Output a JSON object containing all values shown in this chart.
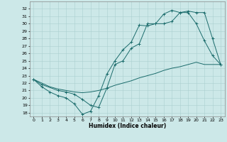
{
  "xlabel": "Humidex (Indice chaleur)",
  "bg_color": "#cce8e8",
  "grid_color": "#aacfcf",
  "line_color": "#1a6b6b",
  "xlim": [
    -0.5,
    23.5
  ],
  "ylim": [
    17.5,
    33.0
  ],
  "xticks": [
    0,
    1,
    2,
    3,
    4,
    5,
    6,
    7,
    8,
    9,
    10,
    11,
    12,
    13,
    14,
    15,
    16,
    17,
    18,
    19,
    20,
    21,
    22,
    23
  ],
  "yticks": [
    18,
    19,
    20,
    21,
    22,
    23,
    24,
    25,
    26,
    27,
    28,
    29,
    30,
    31,
    32
  ],
  "line1_x": [
    0,
    1,
    2,
    3,
    4,
    5,
    6,
    7,
    8,
    9,
    10,
    11,
    12,
    13,
    14,
    15,
    16,
    17,
    18,
    19,
    20,
    21,
    22,
    23
  ],
  "line1_y": [
    22.5,
    21.5,
    20.8,
    20.3,
    20.0,
    19.2,
    17.8,
    18.2,
    20.3,
    23.2,
    25.0,
    26.5,
    27.5,
    29.8,
    29.7,
    30.0,
    31.3,
    31.8,
    31.5,
    31.5,
    30.0,
    27.7,
    25.7,
    24.5
  ],
  "line2_x": [
    0,
    1,
    3,
    4,
    5,
    6,
    7,
    8,
    9,
    10,
    11,
    12,
    13,
    14,
    15,
    16,
    17,
    18,
    19,
    20,
    21,
    22,
    23
  ],
  "line2_y": [
    22.5,
    21.8,
    21.0,
    20.8,
    20.5,
    19.8,
    19.0,
    18.7,
    21.3,
    24.5,
    25.0,
    26.7,
    27.3,
    30.0,
    30.0,
    30.0,
    30.3,
    31.5,
    31.7,
    31.5,
    31.5,
    28.0,
    24.5
  ],
  "line3_x": [
    0,
    1,
    2,
    3,
    4,
    5,
    6,
    7,
    8,
    9,
    10,
    11,
    12,
    13,
    14,
    15,
    16,
    17,
    18,
    19,
    20,
    21,
    22,
    23
  ],
  "line3_y": [
    22.5,
    22.0,
    21.5,
    21.2,
    21.0,
    20.8,
    20.7,
    20.8,
    21.0,
    21.3,
    21.7,
    22.0,
    22.3,
    22.7,
    23.0,
    23.3,
    23.7,
    24.0,
    24.2,
    24.5,
    24.8,
    24.5,
    24.5,
    24.5
  ]
}
